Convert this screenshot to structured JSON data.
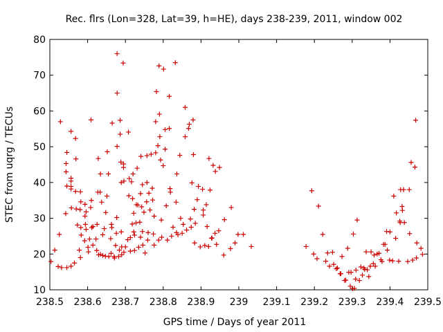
{
  "chart_data": {
    "type": "scatter",
    "title": "Rec. flrs (Lon=328, Lat=39, h=HE), days 238-239, 2011, window 002",
    "xlabel": "GPS time / Days of year 2011",
    "ylabel": "STEC from uqrg / TECUs",
    "xlim": [
      238.5,
      239.5
    ],
    "ylim": [
      10,
      80
    ],
    "xticks": [
      238.5,
      238.6,
      238.7,
      238.8,
      238.9,
      239.0,
      239.1,
      239.2,
      239.3,
      239.4,
      239.5
    ],
    "xtick_labels": [
      "238.5",
      "238.6",
      "238.7",
      "238.8",
      "238.9",
      "239",
      "239.1",
      "239.2",
      "239.3",
      "239.4",
      "239.5"
    ],
    "yticks": [
      10,
      20,
      30,
      40,
      50,
      60,
      70,
      80
    ],
    "ytick_labels": [
      "10",
      "20",
      "30",
      "40",
      "50",
      "60",
      "70",
      "80"
    ],
    "grid": false,
    "marker": "+",
    "color": "#cc0000",
    "series": [
      {
        "name": "STEC",
        "points": [
          [
            238.503,
            17.9
          ],
          [
            238.513,
            21.1
          ],
          [
            238.522,
            16.5
          ],
          [
            238.531,
            16.2
          ],
          [
            238.545,
            16.2
          ],
          [
            238.556,
            16.6
          ],
          [
            238.525,
            25.5
          ],
          [
            238.528,
            57.0
          ],
          [
            238.542,
            31.3
          ],
          [
            238.545,
            39.0
          ],
          [
            238.543,
            43.0
          ],
          [
            238.543,
            45.3
          ],
          [
            238.545,
            48.4
          ],
          [
            238.556,
            54.3
          ],
          [
            238.556,
            40.4
          ],
          [
            238.556,
            41.2
          ],
          [
            238.556,
            38.9
          ],
          [
            238.556,
            38.2
          ],
          [
            238.557,
            32.9
          ],
          [
            238.565,
            17.5
          ],
          [
            238.568,
            52.3
          ],
          [
            238.569,
            46.6
          ],
          [
            238.568,
            37.5
          ],
          [
            238.57,
            32.6
          ],
          [
            238.573,
            28.1
          ],
          [
            238.578,
            21.1
          ],
          [
            238.58,
            32.4
          ],
          [
            238.581,
            37.4
          ],
          [
            238.582,
            34.6
          ],
          [
            238.582,
            27.4
          ],
          [
            238.583,
            25.3
          ],
          [
            238.581,
            19.0
          ],
          [
            238.592,
            23.7
          ],
          [
            238.593,
            33.9
          ],
          [
            238.593,
            30.6
          ],
          [
            238.594,
            28.3
          ],
          [
            238.596,
            31.8
          ],
          [
            238.596,
            26.9
          ],
          [
            238.601,
            21.9
          ],
          [
            238.602,
            20.6
          ],
          [
            238.605,
            24.2
          ],
          [
            238.608,
            33.0
          ],
          [
            238.609,
            57.5
          ],
          [
            238.61,
            35.0
          ],
          [
            238.611,
            27.4
          ],
          [
            238.614,
            27.7
          ],
          [
            238.614,
            22.5
          ],
          [
            238.622,
            24.2
          ],
          [
            238.624,
            21.0
          ],
          [
            238.625,
            28.3
          ],
          [
            238.627,
            37.3
          ],
          [
            238.628,
            46.7
          ],
          [
            238.629,
            19.8
          ],
          [
            238.633,
            37.3
          ],
          [
            238.634,
            42.4
          ],
          [
            238.634,
            19.9
          ],
          [
            238.64,
            25.4
          ],
          [
            238.64,
            19.6
          ],
          [
            238.637,
            34.5
          ],
          [
            238.644,
            27.1
          ],
          [
            238.647,
            19.4
          ],
          [
            238.648,
            31.6
          ],
          [
            238.651,
            36.2
          ],
          [
            238.652,
            48.6
          ],
          [
            238.655,
            42.4
          ],
          [
            238.656,
            19.3
          ],
          [
            238.661,
            24.3
          ],
          [
            238.662,
            20.2
          ],
          [
            238.663,
            28.3
          ],
          [
            238.664,
            27.4
          ],
          [
            238.665,
            56.6
          ],
          [
            238.67,
            19.3
          ],
          [
            238.671,
            18.9
          ],
          [
            238.674,
            22.4
          ],
          [
            238.676,
            25.8
          ],
          [
            238.677,
            30.2
          ],
          [
            238.678,
            50.1
          ],
          [
            238.678,
            65.0
          ],
          [
            238.678,
            76.0
          ],
          [
            238.682,
            19.3
          ],
          [
            238.684,
            21.1
          ],
          [
            238.686,
            53.5
          ],
          [
            238.686,
            57.4
          ],
          [
            238.688,
            45.7
          ],
          [
            238.689,
            40.0
          ],
          [
            238.689,
            26.2
          ],
          [
            238.69,
            22.0
          ],
          [
            238.69,
            19.8
          ],
          [
            238.694,
            73.4
          ],
          [
            238.695,
            45.2
          ],
          [
            238.696,
            40.4
          ],
          [
            238.695,
            44.2
          ],
          [
            238.696,
            20.5
          ],
          [
            238.7,
            22.0
          ],
          [
            238.706,
            24.0
          ],
          [
            238.708,
            54.1
          ],
          [
            238.709,
            36.3
          ],
          [
            238.71,
            41.1
          ],
          [
            238.713,
            24.6
          ],
          [
            238.713,
            20.8
          ],
          [
            238.716,
            40.2
          ],
          [
            238.718,
            28.4
          ],
          [
            238.719,
            35.5
          ],
          [
            238.72,
            42.4
          ],
          [
            238.722,
            26.2
          ],
          [
            238.722,
            31.4
          ],
          [
            238.724,
            25.3
          ],
          [
            238.724,
            21.0
          ],
          [
            238.728,
            28.7
          ],
          [
            238.729,
            33.8
          ],
          [
            238.731,
            44.0
          ],
          [
            238.733,
            33.7
          ],
          [
            238.735,
            21.9
          ],
          [
            238.738,
            28.9
          ],
          [
            238.74,
            24.7
          ],
          [
            238.74,
            36.9
          ],
          [
            238.741,
            47.3
          ],
          [
            238.743,
            33.2
          ],
          [
            238.745,
            39.4
          ],
          [
            238.745,
            26.3
          ],
          [
            238.746,
            22.5
          ],
          [
            238.749,
            31.7
          ],
          [
            238.752,
            20.3
          ],
          [
            238.756,
            34.6
          ],
          [
            238.757,
            40.0
          ],
          [
            238.757,
            47.5
          ],
          [
            238.759,
            23.9
          ],
          [
            238.76,
            26.0
          ],
          [
            238.762,
            37.0
          ],
          [
            238.765,
            32.3
          ],
          [
            238.768,
            47.9
          ],
          [
            238.771,
            38.4
          ],
          [
            238.772,
            35.1
          ],
          [
            238.774,
            25.6
          ],
          [
            238.776,
            22.5
          ],
          [
            238.776,
            30.6
          ],
          [
            238.78,
            57.0
          ],
          [
            238.78,
            48.3
          ],
          [
            238.782,
            65.4
          ],
          [
            238.786,
            50.3
          ],
          [
            238.788,
            23.9
          ],
          [
            238.789,
            72.6
          ],
          [
            238.79,
            59.1
          ],
          [
            238.791,
            52.8
          ],
          [
            238.793,
            46.3
          ],
          [
            238.795,
            29.5
          ],
          [
            238.796,
            24.7
          ],
          [
            238.8,
            44.7
          ],
          [
            238.801,
            71.7
          ],
          [
            238.805,
            54.8
          ],
          [
            238.805,
            49.3
          ],
          [
            238.808,
            33.5
          ],
          [
            238.811,
            23.9
          ],
          [
            238.816,
            55.1
          ],
          [
            238.816,
            64.1
          ],
          [
            238.818,
            38.3
          ],
          [
            238.819,
            37.3
          ],
          [
            238.822,
            25.0
          ],
          [
            238.826,
            27.5
          ],
          [
            238.832,
            73.5
          ],
          [
            238.834,
            34.5
          ],
          [
            238.835,
            26.0
          ],
          [
            238.836,
            42.4
          ],
          [
            238.839,
            25.4
          ],
          [
            238.844,
            47.6
          ],
          [
            238.846,
            30.0
          ],
          [
            238.85,
            25.8
          ],
          [
            238.853,
            28.3
          ],
          [
            238.858,
            61.0
          ],
          [
            238.858,
            52.8
          ],
          [
            238.862,
            26.7
          ],
          [
            238.867,
            55.1
          ],
          [
            238.869,
            56.3
          ],
          [
            238.872,
            29.8
          ],
          [
            238.874,
            27.5
          ],
          [
            238.876,
            39.9
          ],
          [
            238.879,
            57.5
          ],
          [
            238.88,
            47.8
          ],
          [
            238.882,
            32.5
          ],
          [
            238.883,
            23.1
          ],
          [
            238.885,
            28.6
          ],
          [
            238.89,
            35.2
          ],
          [
            238.893,
            38.9
          ],
          [
            238.898,
            22.0
          ],
          [
            238.904,
            38.1
          ],
          [
            238.906,
            32.3
          ],
          [
            238.906,
            30.9
          ],
          [
            238.91,
            22.4
          ],
          [
            238.914,
            33.8
          ],
          [
            238.916,
            27.7
          ],
          [
            238.92,
            22.1
          ],
          [
            238.921,
            46.7
          ],
          [
            238.924,
            37.9
          ],
          [
            238.928,
            24.4
          ],
          [
            238.929,
            24.5
          ],
          [
            238.932,
            44.8
          ],
          [
            238.937,
            25.8
          ],
          [
            238.938,
            43.1
          ],
          [
            238.941,
            22.7
          ],
          [
            238.947,
            26.5
          ],
          [
            238.949,
            44.2
          ],
          [
            238.96,
            19.7
          ],
          [
            238.962,
            29.6
          ],
          [
            238.978,
            21.5
          ],
          [
            238.98,
            33.0
          ],
          [
            238.99,
            23.1
          ],
          [
            238.998,
            25.5
          ],
          [
            239.012,
            25.5
          ],
          [
            239.033,
            22.1
          ],
          [
            239.178,
            22.1
          ],
          [
            239.193,
            37.7
          ],
          [
            239.198,
            20.0
          ],
          [
            239.207,
            18.7
          ],
          [
            239.211,
            33.4
          ],
          [
            239.222,
            25.5
          ],
          [
            239.23,
            18.0
          ],
          [
            239.235,
            20.3
          ],
          [
            239.24,
            16.6
          ],
          [
            239.248,
            20.5
          ],
          [
            239.251,
            17.1
          ],
          [
            239.258,
            15.9
          ],
          [
            239.261,
            16.1
          ],
          [
            239.268,
            14.5
          ],
          [
            239.27,
            14.5
          ],
          [
            239.273,
            19.3
          ],
          [
            239.28,
            12.6
          ],
          [
            239.283,
            12.7
          ],
          [
            239.288,
            21.6
          ],
          [
            239.291,
            14.9
          ],
          [
            239.295,
            11.0
          ],
          [
            239.297,
            14.9
          ],
          [
            239.301,
            10.3
          ],
          [
            239.303,
            25.6
          ],
          [
            239.306,
            10.4
          ],
          [
            239.309,
            13.0
          ],
          [
            239.31,
            15.5
          ],
          [
            239.313,
            29.5
          ],
          [
            239.319,
            12.6
          ],
          [
            239.323,
            16.4
          ],
          [
            239.327,
            14.1
          ],
          [
            239.331,
            16.1
          ],
          [
            239.333,
            15.7
          ],
          [
            239.337,
            20.6
          ],
          [
            239.34,
            15.6
          ],
          [
            239.344,
            13.7
          ],
          [
            239.348,
            16.6
          ],
          [
            239.35,
            20.6
          ],
          [
            239.356,
            17.3
          ],
          [
            239.358,
            19.7
          ],
          [
            239.361,
            16.6
          ],
          [
            239.366,
            20.0
          ],
          [
            239.371,
            20.2
          ],
          [
            239.376,
            18.4
          ],
          [
            239.379,
            17.9
          ],
          [
            239.383,
            22.7
          ],
          [
            239.387,
            22.7
          ],
          [
            239.391,
            26.3
          ],
          [
            239.393,
            21.1
          ],
          [
            239.399,
            18.3
          ],
          [
            239.4,
            26.2
          ],
          [
            239.407,
            18.1
          ],
          [
            239.41,
            36.2
          ],
          [
            239.415,
            24.4
          ],
          [
            239.417,
            31.5
          ],
          [
            239.423,
            18.0
          ],
          [
            239.426,
            29.2
          ],
          [
            239.427,
            28.8
          ],
          [
            239.428,
            38.0
          ],
          [
            239.432,
            33.3
          ],
          [
            239.433,
            32.2
          ],
          [
            239.436,
            38.0
          ],
          [
            239.438,
            28.8
          ],
          [
            239.447,
            17.9
          ],
          [
            239.451,
            38.0
          ],
          [
            239.452,
            25.7
          ],
          [
            239.456,
            45.6
          ],
          [
            239.46,
            18.3
          ],
          [
            239.466,
            44.3
          ],
          [
            239.468,
            57.4
          ],
          [
            239.47,
            18.9
          ],
          [
            239.471,
            23.1
          ],
          [
            239.482,
            21.6
          ],
          [
            239.486,
            19.9
          ]
        ]
      }
    ]
  }
}
